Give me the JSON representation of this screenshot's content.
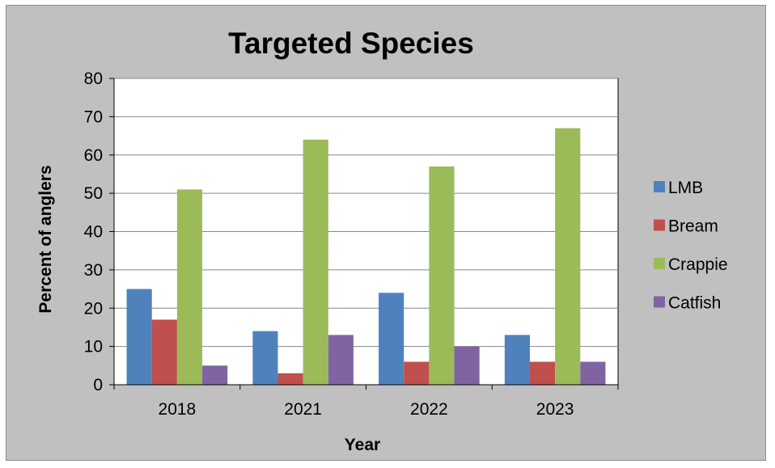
{
  "chart_data": {
    "type": "bar",
    "title": "Targeted Species",
    "xlabel": "Year",
    "ylabel": "Percent of anglers",
    "categories": [
      "2018",
      "2021",
      "2022",
      "2023"
    ],
    "ylim": [
      0,
      80
    ],
    "yticks": [
      0,
      10,
      20,
      30,
      40,
      50,
      60,
      70,
      80
    ],
    "yticks_labels": [
      "0",
      "10",
      "20",
      "30",
      "40",
      "50",
      "60",
      "70",
      "80"
    ],
    "grid": true,
    "legend_position": "right",
    "series": [
      {
        "name": "LMB",
        "color": "#4f81bd",
        "values": [
          25,
          14,
          24,
          13
        ]
      },
      {
        "name": "Bream",
        "color": "#c0504d",
        "values": [
          17,
          3,
          6,
          6
        ]
      },
      {
        "name": "Crappie",
        "color": "#9bbb59",
        "values": [
          51,
          64,
          57,
          67
        ]
      },
      {
        "name": "Catfish",
        "color": "#8064a2",
        "values": [
          5,
          13,
          10,
          6
        ]
      }
    ]
  }
}
